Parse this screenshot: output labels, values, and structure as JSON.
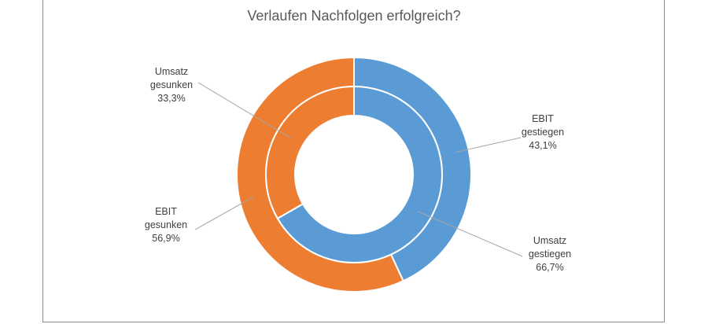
{
  "chart_data": {
    "type": "donut",
    "title": "Verlaufen Nachfolgen erfolgreich?",
    "rings": [
      {
        "name": "EBIT",
        "position": "outer",
        "slices": [
          {
            "category": "gestiegen",
            "value": 43.1,
            "color": "#5b9bd5",
            "label_lines": [
              "EBIT",
              "gestiegen",
              "43,1%"
            ]
          },
          {
            "category": "gesunken",
            "value": 56.9,
            "color": "#ed7d31",
            "label_lines": [
              "EBIT",
              "gesunken",
              "56,9%"
            ]
          }
        ]
      },
      {
        "name": "Umsatz",
        "position": "inner",
        "slices": [
          {
            "category": "gestiegen",
            "value": 66.7,
            "color": "#5b9bd5",
            "label_lines": [
              "Umsatz",
              "gestiegen",
              "66,7%"
            ]
          },
          {
            "category": "gesunken",
            "value": 33.3,
            "color": "#ed7d31",
            "label_lines": [
              "Umsatz",
              "gesunken",
              "33,3%"
            ]
          }
        ]
      }
    ],
    "legend": "none"
  }
}
